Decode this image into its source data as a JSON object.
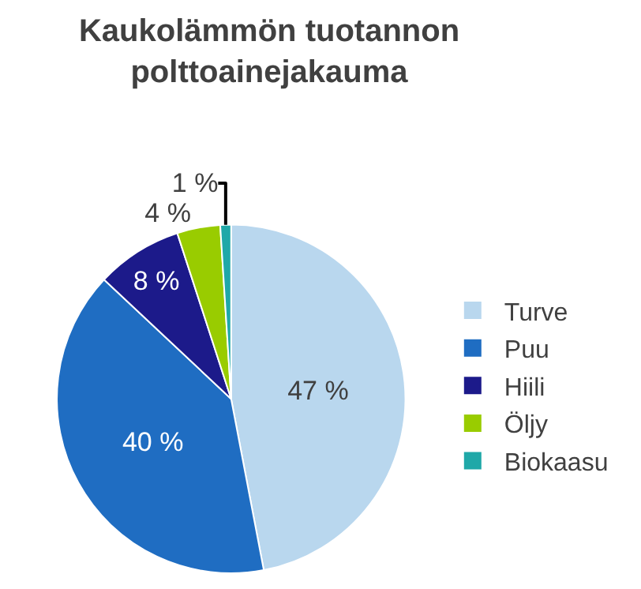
{
  "chart_data": {
    "type": "pie",
    "title": "Kaukolämmön tuotannon\npolttoainejakauma",
    "categories": [
      "Turve",
      "Puu",
      "Hiili",
      "Öljy",
      "Biokaasu"
    ],
    "values": [
      47,
      40,
      8,
      4,
      1
    ],
    "value_labels": [
      "47 %",
      "40 %",
      "8 %",
      "4 %",
      "1 %"
    ],
    "colors": [
      "#b9d7ee",
      "#1f6dc2",
      "#1c1a8a",
      "#99cc00",
      "#1fa8a8"
    ],
    "legend": "right"
  }
}
